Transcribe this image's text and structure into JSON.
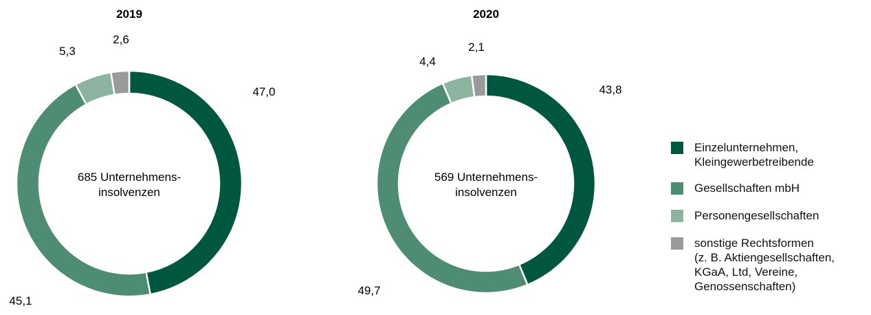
{
  "chart_data": [
    {
      "type": "pie",
      "title": "2019",
      "center_text": [
        "685 Unternehmens-",
        "insolvenzen"
      ],
      "categories": [
        "Einzelunternehmen, Kleingewerbetreibende",
        "Gesellschaften mbH",
        "Personengesellschaften",
        "sonstige Rechtsformen (z. B. Aktiengesellschaften, KGaA, Ltd, Vereine, Genossenschaften)"
      ],
      "values": [
        47.0,
        45.1,
        5.3,
        2.6
      ],
      "value_labels": [
        "47,0",
        "45,1",
        "5,3",
        "2,6"
      ]
    },
    {
      "type": "pie",
      "title": "2020",
      "center_text": [
        "569 Unternehmens-",
        "insolvenzen"
      ],
      "categories": [
        "Einzelunternehmen, Kleingewerbetreibende",
        "Gesellschaften mbH",
        "Personengesellschaften",
        "sonstige Rechtsformen (z. B. Aktiengesellschaften, KGaA, Ltd, Vereine, Genossenschaften)"
      ],
      "values": [
        43.8,
        49.7,
        4.4,
        2.1
      ],
      "value_labels": [
        "43,8",
        "49,7",
        "4,4",
        "2,1"
      ]
    }
  ],
  "legend": [
    {
      "label": "Einzelunternehmen,\nKleingewerbetreibende",
      "color": "#00573f"
    },
    {
      "label": "Gesellschaften mbH",
      "color": "#4e8c73"
    },
    {
      "label": "Personengesellschaften",
      "color": "#8db4a0"
    },
    {
      "label": "sonstige Rechtsformen\n(z. B. Aktiengesellschaften,\nKGaA, Ltd, Vereine,\nGenossenschaften)",
      "color": "#9a9a9a"
    }
  ],
  "colors": [
    "#00573f",
    "#4e8c73",
    "#8db4a0",
    "#9a9a9a"
  ]
}
